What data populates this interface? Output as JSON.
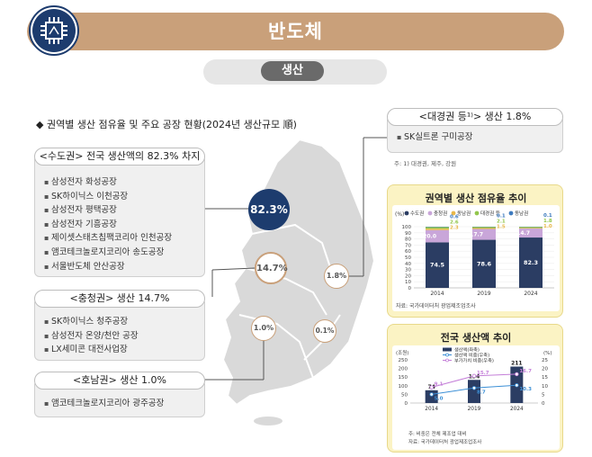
{
  "header": {
    "title": "반도체",
    "subtitle": "생산"
  },
  "section_title": "◆ 권역별 생산 점유율 및 주요 공장 현황(2024년 생산규모 順)",
  "regions": [
    {
      "title": "<수도권> 전국 생산액의 82.3% 차지",
      "share": "82.3%",
      "items": [
        "삼성전자 화성공장",
        "SK하이닉스 이천공장",
        "삼성전자 평택공장",
        "삼성전자 기흥공장",
        "제이셋스태츠칩팩코리아 인천공장",
        "앰코테크놀로지코리아 송도공장",
        "서울반도체 안산공장"
      ]
    },
    {
      "title": "<충청권> 생산 14.7%",
      "share": "14.7%",
      "items": [
        "SK하이닉스 청주공장",
        "삼성전자 온양/천안 공장",
        "LX세미콘 대전사업장"
      ]
    },
    {
      "title": "<호남권> 생산 1.0%",
      "share": "1.0%",
      "items": [
        "앰코테크놀로지코리아 광주공장"
      ]
    },
    {
      "title": "<대경권 등¹⁾> 생산 1.8%",
      "share": "1.8%",
      "items": [
        "SK실트론 구미공장"
      ],
      "note": "주: 1) 대경권, 제주, 강원"
    }
  ],
  "map_extra_share": "0.1%",
  "chart_data": [
    {
      "type": "bar",
      "title": "권역별 생산 점유율 추이",
      "unit_label": "(%)",
      "categories": [
        "2014",
        "2019",
        "2024"
      ],
      "ylim": [
        0,
        100
      ],
      "yticks": [
        "0",
        "10",
        "20",
        "30",
        "40",
        "50",
        "60",
        "70",
        "80",
        "90",
        "100"
      ],
      "stacked": true,
      "series": [
        {
          "name": "수도권",
          "values": [
            74.5,
            78.6,
            82.3
          ],
          "labels": [
            "74.5",
            "78.6",
            "82.3"
          ],
          "color": "#2b3d63"
        },
        {
          "name": "충청권",
          "values": [
            20.0,
            17.7,
            14.7
          ],
          "labels": [
            "20.0",
            "17.7",
            "14.7"
          ],
          "color": "#c9a6d9"
        },
        {
          "name": "동남권",
          "values": [
            2.3,
            1.5,
            1.0
          ],
          "labels": [
            "2.3",
            "1.5",
            "1.0"
          ],
          "color": "#e8b84a"
        },
        {
          "name": "대경권 등",
          "values": [
            2.6,
            2.1,
            1.8
          ],
          "labels": [
            "2.6",
            "2.1",
            "1.8"
          ],
          "color": "#93c64c"
        },
        {
          "name": "동남권",
          "values": [
            0.6,
            0.1,
            0.1
          ],
          "labels": [
            "0.6",
            "0.1",
            "0.1"
          ],
          "color": "#3e7bbf"
        }
      ],
      "source": "자료: 국가데이터처 광업제조업조사"
    },
    {
      "type": "bar",
      "title": "전국 생산액 추이",
      "left_unit": "(조원)",
      "right_unit": "(%)",
      "categories": [
        "2014",
        "2019",
        "2024"
      ],
      "ylim": [
        0,
        250
      ],
      "yticks": [
        "0",
        "50",
        "100",
        "150",
        "200",
        "250"
      ],
      "y2lim": [
        0,
        25
      ],
      "y2ticks": [
        "0",
        "5",
        "10",
        "15",
        "20",
        "25"
      ],
      "series": [
        {
          "name": "생산액(좌축)",
          "kind": "bar",
          "values": [
            74,
            134,
            211
          ],
          "labels": [
            "74",
            "134",
            "211"
          ],
          "color": "#2b3d63"
        },
        {
          "name": "생산액 비중(우축)",
          "kind": "line",
          "values": [
            5.0,
            8.7,
            10.3
          ],
          "labels": [
            "5.0",
            "8.7",
            "10.3"
          ],
          "color": "#3b8fd6"
        },
        {
          "name": "부가가치 비중(우축)",
          "kind": "line",
          "values": [
            9.1,
            15.7,
            16.7
          ],
          "labels": [
            "9.1",
            "15.7",
            "16.7"
          ],
          "color": "#c47fd8"
        }
      ],
      "notes": [
        "주: 비중은 전체 제조업 대비",
        "자료: 국가데이터처 광업제조업조사"
      ]
    }
  ],
  "colors": {
    "banner": "#c9a07a",
    "navy": "#1d3c6e",
    "accent_yellow": "#fbf3c4",
    "map_gray": "#d9d9d9"
  },
  "icons": {
    "header": "chip-icon"
  }
}
